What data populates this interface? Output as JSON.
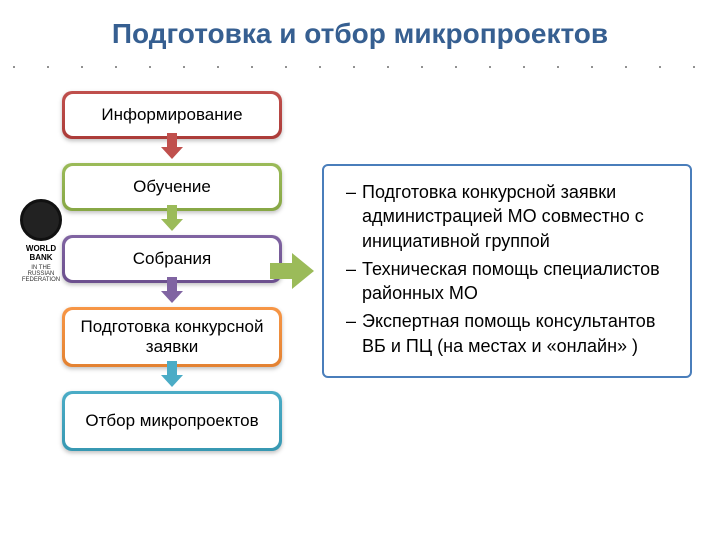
{
  "title": "Подготовка и отбор микропроектов",
  "dots": ". . . . . . . . . . . . . . . . . . . . .",
  "logo": {
    "name": "WORLD BANK",
    "sub": "IN THE RUSSIAN FEDERATION"
  },
  "stages": [
    {
      "label": "Информирование",
      "color": "#c0504d",
      "lines": 1
    },
    {
      "label": "Обучение",
      "color": "#9bbb59",
      "lines": 1
    },
    {
      "label": "Собрания",
      "color": "#8064a2",
      "lines": 1
    },
    {
      "label": "Подготовка конкурсной заявки",
      "color": "#f79646",
      "lines": 2
    },
    {
      "label": "Отбор микропроектов",
      "color": "#4bacc6",
      "lines": 2
    }
  ],
  "arrows": [
    {
      "color": "#c0504d"
    },
    {
      "color": "#9bbb59"
    },
    {
      "color": "#8064a2"
    },
    {
      "color": "#4bacc6"
    }
  ],
  "big_arrow_color": "#9bbb59",
  "info_items": [
    "Подготовка конкурсной заявки администрацией МО совместно с инициативной группой",
    "Техническая помощь специалистов районных МО",
    "Экспертная помощь консультантов ВБ и ПЦ (на местах и «онлайн» )"
  ],
  "info_border_color": "#4a7ebb",
  "title_color": "#365f91",
  "background_color": "#ffffff"
}
